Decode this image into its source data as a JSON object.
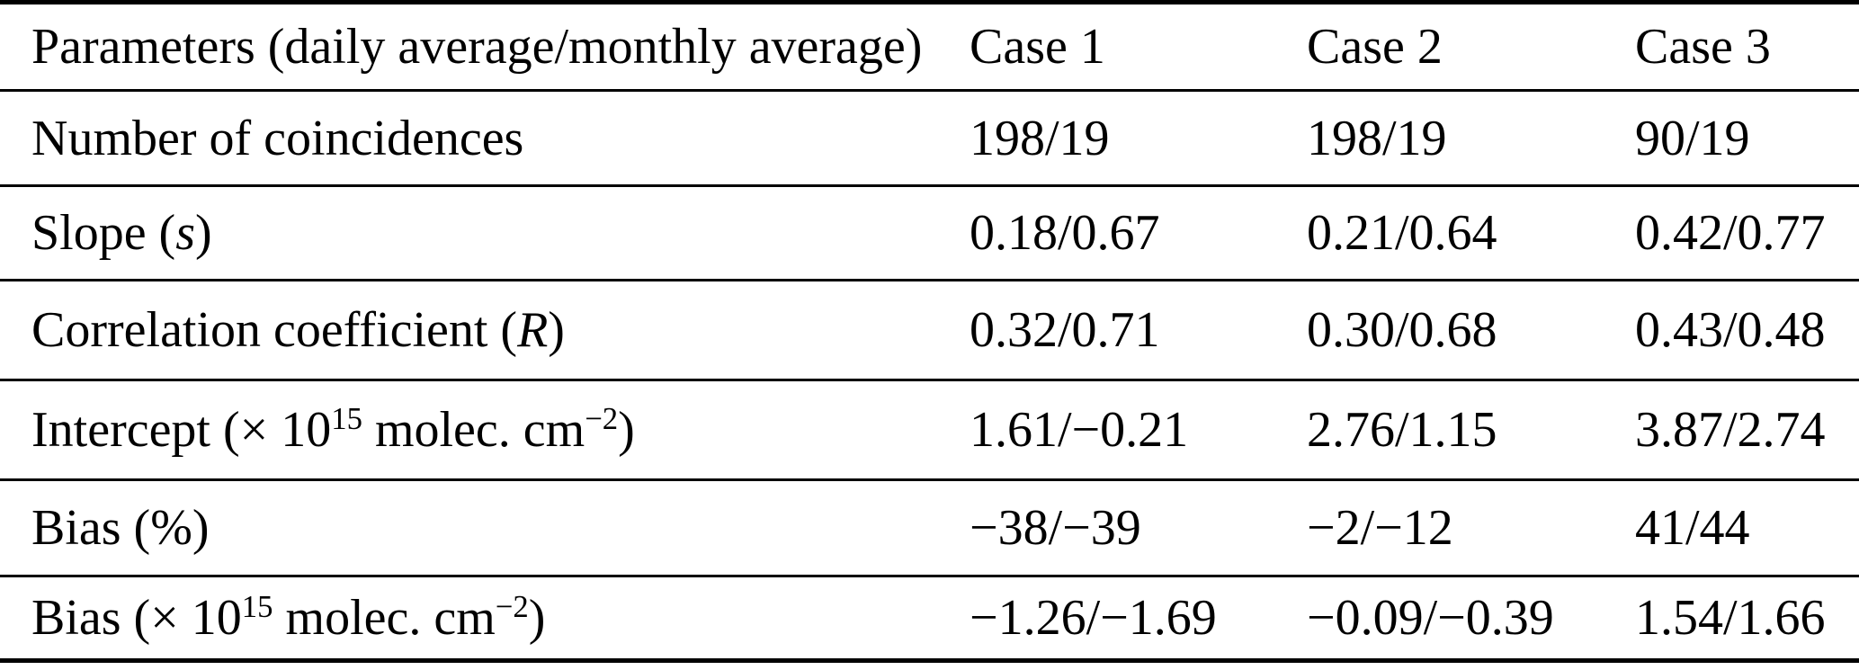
{
  "table": {
    "header": {
      "label": "Parameters (daily average/monthly average)",
      "cases": [
        "Case 1",
        "Case 2",
        "Case 3"
      ]
    },
    "rows": [
      {
        "label_parts": [
          {
            "t": "Number of coincidences"
          }
        ],
        "values": [
          "198/19",
          "198/19",
          "90/19"
        ]
      },
      {
        "label_parts": [
          {
            "t": "Slope ("
          },
          {
            "t": "s",
            "s": "it"
          },
          {
            "t": ")"
          }
        ],
        "values": [
          "0.18/0.67",
          "0.21/0.64",
          "0.42/0.77"
        ]
      },
      {
        "label_parts": [
          {
            "t": "Correlation coefficient ("
          },
          {
            "t": "R",
            "s": "it"
          },
          {
            "t": ")"
          }
        ],
        "values": [
          "0.32/0.71",
          "0.30/0.68",
          "0.43/0.48"
        ]
      },
      {
        "label_parts": [
          {
            "t": "Intercept (× 10"
          },
          {
            "t": "15",
            "s": "sup"
          },
          {
            "t": " molec. cm"
          },
          {
            "t": "−2",
            "s": "sup"
          },
          {
            "t": ")"
          }
        ],
        "values": [
          "1.61/−0.21",
          "2.76/1.15",
          "3.87/2.74"
        ]
      },
      {
        "label_parts": [
          {
            "t": "Bias (%)"
          }
        ],
        "values": [
          "−38/−39",
          "−2/−12",
          "41/44"
        ]
      },
      {
        "label_parts": [
          {
            "t": "Bias (× 10"
          },
          {
            "t": "15",
            "s": "sup"
          },
          {
            "t": " molec. cm"
          },
          {
            "t": "−2",
            "s": "sup"
          },
          {
            "t": ")"
          }
        ],
        "values": [
          "−1.26/−1.69",
          "−0.09/−0.39",
          "1.54/1.66"
        ]
      }
    ]
  },
  "colors": {
    "text": "#000000",
    "background": "#ffffff",
    "rule": "#000000"
  }
}
